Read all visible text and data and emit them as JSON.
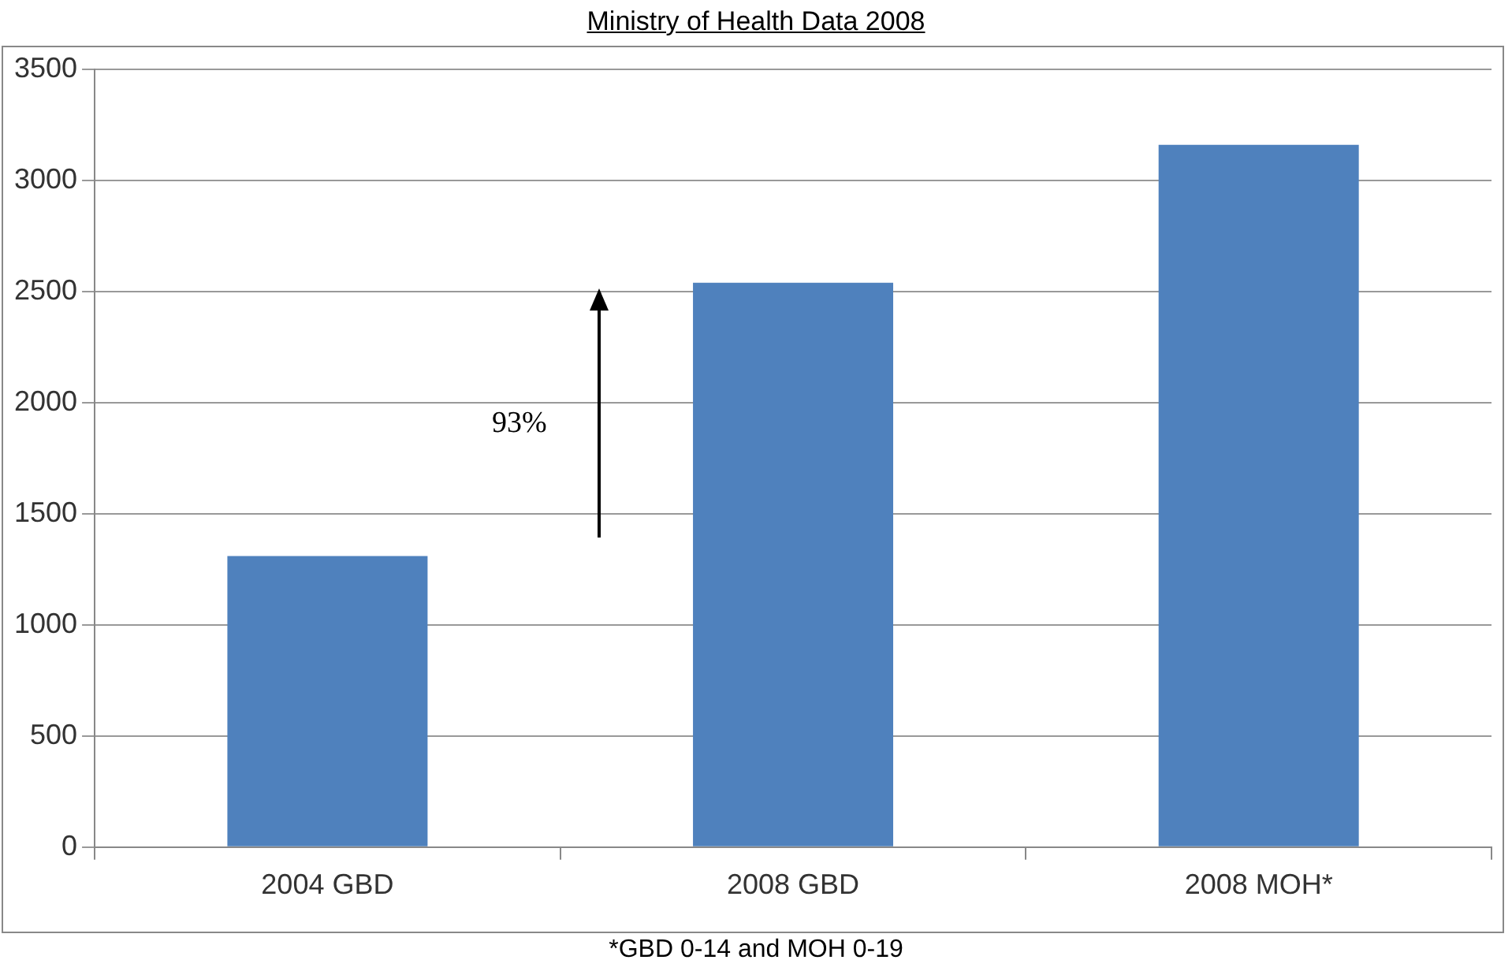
{
  "chart_data": {
    "type": "bar",
    "title": "Ministry of Health Data 2008",
    "categories": [
      "2004 GBD",
      "2008 GBD",
      "2008 MOH*"
    ],
    "values": [
      1310,
      2540,
      3160
    ],
    "color": "#4f81bd",
    "ylim": [
      0,
      3500
    ],
    "yticks": [
      0,
      500,
      1000,
      1500,
      2000,
      2500,
      3000,
      3500
    ],
    "grid": "y",
    "annotations": [
      "93%",
      "*GBD 0-14 and MOH 0-19"
    ]
  }
}
